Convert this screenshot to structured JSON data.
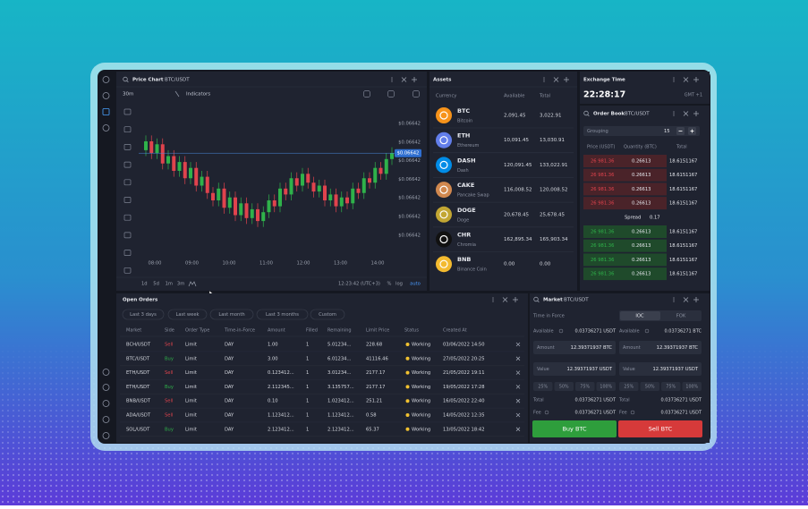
{
  "price_chart": {
    "title": "Price Chart",
    "pair": "BTC/USDT",
    "interval": "30m",
    "indicators": "Indicators",
    "chart": {
      "type": "candlestick",
      "x_labels": [
        "08:00",
        "09:00",
        "10:00",
        "11:00",
        "12:00",
        "13:00",
        "14:00"
      ],
      "y_labels": [
        "$0.06642",
        "$0.06642",
        "$0.06642",
        "$0.06642",
        "$0.06642",
        "$0.06642",
        "$0.06642"
      ],
      "current_price_label": "$0.06642",
      "ylim": [
        0,
        100
      ],
      "up_color": "#2fb24a",
      "down_color": "#e0434d",
      "candles": [
        [
          74,
          84,
          70,
          80
        ],
        [
          80,
          84,
          68,
          72
        ],
        [
          72,
          82,
          68,
          78
        ],
        [
          78,
          82,
          61,
          65
        ],
        [
          65,
          74,
          61,
          70
        ],
        [
          70,
          74,
          56,
          60
        ],
        [
          60,
          70,
          56,
          66
        ],
        [
          66,
          70,
          51,
          55
        ],
        [
          55,
          66,
          51,
          62
        ],
        [
          62,
          66,
          46,
          50
        ],
        [
          50,
          60,
          46,
          56
        ],
        [
          56,
          60,
          41,
          45
        ],
        [
          45,
          49,
          36,
          40
        ],
        [
          40,
          52,
          36,
          48
        ],
        [
          48,
          52,
          31,
          35
        ],
        [
          35,
          46,
          31,
          42
        ],
        [
          42,
          46,
          26,
          30
        ],
        [
          30,
          42,
          26,
          38
        ],
        [
          38,
          42,
          24,
          28
        ],
        [
          28,
          38,
          24,
          34
        ],
        [
          34,
          38,
          22,
          26
        ],
        [
          26,
          36,
          22,
          32
        ],
        [
          32,
          44,
          28,
          40
        ],
        [
          40,
          44,
          32,
          36
        ],
        [
          36,
          52,
          32,
          48
        ],
        [
          48,
          52,
          40,
          44
        ],
        [
          44,
          59,
          40,
          55
        ],
        [
          55,
          59,
          46,
          50
        ],
        [
          50,
          62,
          46,
          58
        ],
        [
          58,
          62,
          48,
          52
        ],
        [
          52,
          56,
          42,
          46
        ],
        [
          46,
          54,
          42,
          50
        ],
        [
          50,
          54,
          36,
          40
        ],
        [
          40,
          48,
          36,
          44
        ],
        [
          44,
          48,
          32,
          36
        ],
        [
          36,
          46,
          32,
          42
        ],
        [
          42,
          46,
          34,
          38
        ],
        [
          38,
          52,
          34,
          48
        ],
        [
          48,
          52,
          41,
          45
        ],
        [
          45,
          59,
          41,
          55
        ],
        [
          55,
          59,
          48,
          52
        ],
        [
          52,
          66,
          48,
          62
        ],
        [
          62,
          66,
          54,
          58
        ],
        [
          58,
          72,
          54,
          68
        ],
        [
          68,
          76,
          64,
          72
        ]
      ]
    },
    "periods": [
      "1d",
      "5d",
      "1m",
      "3m"
    ],
    "clock": "12:23:42 (UTC+3)",
    "scale_options": [
      "%",
      "log",
      "auto"
    ]
  },
  "assets": {
    "title": "Assets",
    "columns": [
      "Currency",
      "Available",
      "Total"
    ],
    "rows": [
      {
        "symbol": "BTC",
        "name": "Bitcoin",
        "available": "2,091.45",
        "total": "3,022.91",
        "color": "#f7931a"
      },
      {
        "symbol": "ETH",
        "name": "Ethereum",
        "available": "10,091.45",
        "total": "13,030.91",
        "color": "#627eea"
      },
      {
        "symbol": "DASH",
        "name": "Dash",
        "available": "120,091.45",
        "total": "133,022.91",
        "color": "#008ce7"
      },
      {
        "symbol": "CAKE",
        "name": "Pancake Swap",
        "available": "116,008.52",
        "total": "120,008.52",
        "color": "#d1884f"
      },
      {
        "symbol": "DOGE",
        "name": "Doge",
        "available": "20,678.45",
        "total": "25,678.45",
        "color": "#c2a633"
      },
      {
        "symbol": "CHR",
        "name": "Chromia",
        "available": "162,895.34",
        "total": "165,903.34",
        "color": "#111111"
      },
      {
        "symbol": "BNB",
        "name": "Binance Coin",
        "available": "0.00",
        "total": "0.00",
        "color": "#f3ba2f"
      }
    ]
  },
  "exchange_time": {
    "title": "Exchange Time",
    "time": "22:28:17",
    "zone": "GMT +1"
  },
  "order_book": {
    "title": "Order Book",
    "pair": "BTC/USDT",
    "grouping_label": "Grouping",
    "grouping": "15",
    "columns": [
      "Price (USDT)",
      "Quantity (BTC)",
      "Total"
    ],
    "asks": [
      [
        "26 981.36",
        "0.26613",
        "18.6151167"
      ],
      [
        "26 981.36",
        "0.26613",
        "18.6151167"
      ],
      [
        "26 981.36",
        "0.26613",
        "18.6151167"
      ],
      [
        "26 981.36",
        "0.26613",
        "18.6151167"
      ]
    ],
    "spread_label": "Spread",
    "spread": "0.17",
    "bids": [
      [
        "26 981.36",
        "0.26613",
        "18.6151167"
      ],
      [
        "26 981.36",
        "0.26613",
        "18.6151167"
      ],
      [
        "26 981.36",
        "0.26613",
        "18.6151167"
      ],
      [
        "26 981.36",
        "0.26613",
        "18.6151167"
      ]
    ]
  },
  "open_orders": {
    "title": "Open Orders",
    "tabs": [
      "Last 3 days",
      "Last week",
      "Last month",
      "Last 3 months",
      "Custom"
    ],
    "columns": [
      "Market",
      "Side",
      "Order Type",
      "Time-in-Force",
      "Amount",
      "Filled",
      "Remaining",
      "Limit Price",
      "Status",
      "Created At"
    ],
    "rows": [
      [
        "BCH/USDT",
        "Sell",
        "Limit",
        "DAY",
        "1.00",
        "1",
        "5.01234...",
        "228.68",
        "Working",
        "03/06/2022 14:50"
      ],
      [
        "BTC/USDT",
        "Buy",
        "Limit",
        "DAY",
        "3.00",
        "1",
        "6.01234...",
        "41116.46",
        "Working",
        "27/05/2022 20:25"
      ],
      [
        "ETH/USDT",
        "Sell",
        "Limit",
        "DAY",
        "0.123412...",
        "1",
        "3.01234...",
        "2177.17",
        "Working",
        "21/05/2022 19:11"
      ],
      [
        "ETH/USDT",
        "Buy",
        "Limit",
        "DAY",
        "2.112345...",
        "1",
        "3.135757...",
        "2177.17",
        "Working",
        "19/05/2022 17:28"
      ],
      [
        "BNB/USDT",
        "Sell",
        "Limit",
        "DAY",
        "0.10",
        "1",
        "1.023412...",
        "251.21",
        "Working",
        "16/05/2022 22:40"
      ],
      [
        "ADA/USDT",
        "Sell",
        "Limit",
        "DAY",
        "1.123412...",
        "1",
        "1.123412...",
        "0.58",
        "Working",
        "14/05/2022 12:35"
      ],
      [
        "SOL/USDT",
        "Buy",
        "Limit",
        "DAY",
        "2.123412...",
        "1",
        "2.123412...",
        "65.37",
        "Working",
        "13/05/2022 18:42"
      ]
    ]
  },
  "market": {
    "title": "Market",
    "pair": "BTC/USDT",
    "time_in_force": "Time in Force",
    "tif_options": [
      "IOC",
      "FOK"
    ],
    "buy": {
      "available_label": "Available",
      "available": "0.03736271 USDT",
      "amount_label": "Amount",
      "amount": "12.39371937 BTC",
      "value_label": "Value",
      "value": "12.39371937 USDT",
      "percents": [
        "25%",
        "50%",
        "75%",
        "100%"
      ],
      "total_label": "Total",
      "total": "0.03736271 USDT",
      "fee_label": "Fee",
      "fee": "0.03736271 USDT",
      "button": "Buy BTC"
    },
    "sell": {
      "available_label": "Available",
      "available": "0.03736271 BTC",
      "amount_label": "Amount",
      "amount": "12.39371937 BTC",
      "value_label": "Value",
      "value": "12.39371937 USDT",
      "percents": [
        "25%",
        "50%",
        "75%",
        "100%"
      ],
      "total_label": "Total",
      "total": "0.03736271 USDT",
      "fee_label": "Fee",
      "fee": "0.03736271 USDT",
      "button": "Sell BTC"
    }
  }
}
